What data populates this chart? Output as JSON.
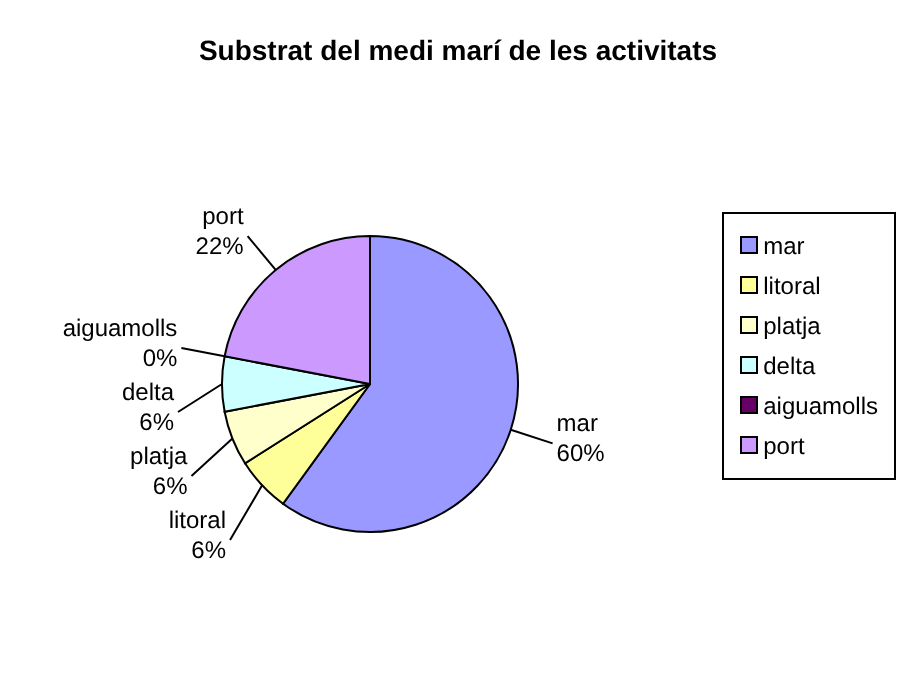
{
  "chart_data": {
    "type": "pie",
    "title": "Substrat del medi marí de les activitats",
    "categories": [
      "mar",
      "litoral",
      "platja",
      "delta",
      "aiguamolls",
      "port"
    ],
    "values": [
      60,
      6,
      6,
      6,
      0,
      22
    ],
    "value_labels": [
      "60%",
      "6%",
      "6%",
      "6%",
      "0%",
      "22%"
    ],
    "colors": [
      "#9999ff",
      "#ffff99",
      "#ffffcc",
      "#ccffff",
      "#660066",
      "#cc99ff"
    ],
    "legend": "right"
  }
}
